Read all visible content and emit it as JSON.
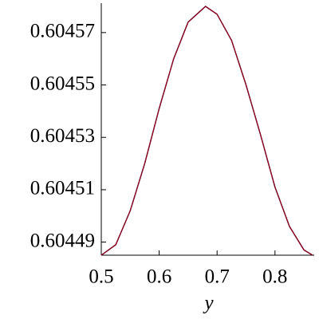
{
  "chart_data": {
    "type": "line",
    "x_label": "y",
    "x": [
      0.5,
      0.525,
      0.55,
      0.575,
      0.6,
      0.625,
      0.65,
      0.68,
      0.7,
      0.725,
      0.75,
      0.775,
      0.8,
      0.825,
      0.85,
      0.865
    ],
    "series": [
      {
        "color": "#800020",
        "values": [
          0.604485,
          0.604489,
          0.604502,
          0.60452,
          0.604541,
          0.60456,
          0.604574,
          0.60458,
          0.604577,
          0.604567,
          0.60455,
          0.604531,
          0.604511,
          0.604496,
          0.604487,
          0.604485
        ]
      }
    ],
    "xlim": [
      0.5,
      0.865
    ],
    "xticks": [
      0.5,
      0.6,
      0.7,
      0.8
    ],
    "ylim": [
      0.604485,
      0.60458
    ],
    "yticks": [
      0.60449,
      0.60451,
      0.60453,
      0.60455,
      0.60457
    ]
  }
}
